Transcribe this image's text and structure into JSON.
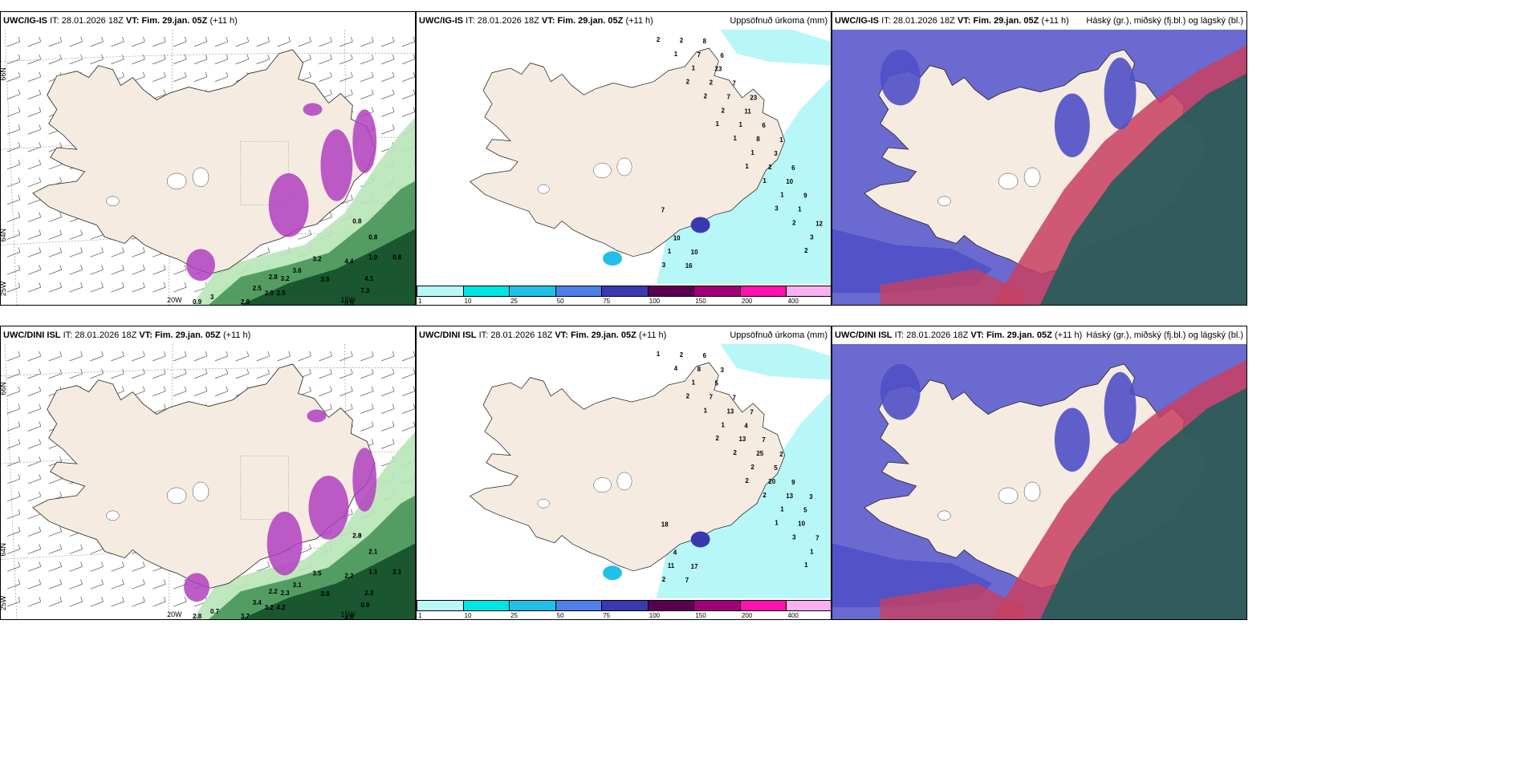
{
  "panels": [
    {
      "model": "UWC/IG-IS",
      "it_label": "IT:",
      "it": "28.01.2026 18Z",
      "vt_label": "VT:",
      "vt": "Fim. 29.jan. 05Z",
      "lead": "(+11 h)",
      "title_right": ""
    },
    {
      "model": "UWC/IG-IS",
      "it_label": "IT:",
      "it": "28.01.2026 18Z",
      "vt_label": "VT:",
      "vt": "Fim. 29.jan. 05Z",
      "lead": "(+11 h)",
      "title_right": "Uppsöfnuð úrkoma (mm)"
    },
    {
      "model": "UWC/IG-IS",
      "it_label": "IT:",
      "it": "28.01.2026 18Z",
      "vt_label": "VT:",
      "vt": "Fim. 29.jan. 05Z",
      "lead": "(+11 h)",
      "title_right": "Háský (gr.), miðský (fj.bl.) og lágský (bl.)"
    },
    {
      "model": "UWC/DINI ISL",
      "it_label": "IT:",
      "it": "28.01.2026 18Z",
      "vt_label": "VT:",
      "vt": "Fim. 29.jan. 05Z",
      "lead": "(+11 h)",
      "title_right": ""
    },
    {
      "model": "UWC/DINI ISL",
      "it_label": "IT:",
      "it": "28.01.2026 18Z",
      "vt_label": "VT:",
      "vt": "Fim. 29.jan. 05Z",
      "lead": "(+11 h)",
      "title_right": "Uppsöfnuð úrkoma (mm)"
    },
    {
      "model": "UWC/DINI ISL",
      "it_label": "IT:",
      "it": "28.01.2026 18Z",
      "vt_label": "VT:",
      "vt": "Fim. 29.jan. 05Z",
      "lead": "(+11 h)",
      "title_right": "Háský (gr.), miðský (fj.bl.) og lágský (bl.)"
    }
  ],
  "grid_labels": {
    "lat66": "66N",
    "lat64": "64N",
    "lon25": "25W",
    "lon20": "20W",
    "lon15": "15W"
  },
  "colorbar": {
    "ticks": [
      "1",
      "10",
      "25",
      "50",
      "75",
      "100",
      "150",
      "200",
      "400"
    ],
    "colors": [
      "#b8f7f7",
      "#00e6e6",
      "#22c0e8",
      "#4f7fe8",
      "#3a3ab0",
      "#5a0050",
      "#a0007a",
      "#ff10b0",
      "#f8b0f0"
    ]
  },
  "precip_labels_top": [
    "2",
    "2",
    "1",
    "1",
    "3",
    "2",
    "1",
    "2",
    "1",
    "1",
    "2",
    "3",
    "1",
    "2",
    "1",
    "1",
    "3",
    "2",
    "2",
    "1",
    "2",
    "1",
    "1",
    "7",
    "7",
    "8",
    "10",
    "12",
    "16",
    "23",
    "11",
    "3",
    "9",
    "10",
    "8",
    "7",
    "6",
    "6",
    "7",
    "10",
    "6",
    "23",
    "1"
  ],
  "precip_labels_bottom": [
    "1",
    "2",
    "2",
    "2",
    "1",
    "1",
    "4",
    "1",
    "2",
    "2",
    "3",
    "2",
    "1",
    "1",
    "2",
    "1",
    "1",
    "2",
    "7",
    "13",
    "20",
    "10",
    "11",
    "8",
    "13",
    "25",
    "13",
    "7",
    "7",
    "5",
    "4",
    "5",
    "5",
    "4",
    "6",
    "7",
    "7",
    "9",
    "18",
    "17",
    "3",
    "7",
    "2",
    "3"
  ],
  "wind_labels_top": [
    "0.8",
    "0.8",
    "1.0",
    "0.8",
    "4.4",
    "4.1",
    "3.2",
    "3.6",
    "3.9",
    "2.8",
    "3.2",
    "2.5",
    "2.9",
    "2.5",
    "2.8",
    "0.5",
    "7.3",
    "0.9",
    "3"
  ],
  "wind_labels_bottom": [
    "2.0",
    "2.1",
    "1.1",
    "2.1",
    "2.2",
    "2.3",
    "3.5",
    "3.1",
    "3.8",
    "2.2",
    "2.3",
    "3.4",
    "3.2",
    "4.2",
    "3.7",
    "4.6",
    "0.9",
    "2.8",
    "0.7",
    "2.3"
  ],
  "colors": {
    "land": "#f5ebe0",
    "precip_light": "#b8f7f7",
    "green_shade": "#1f6b3a",
    "purple_shade": "#b040c0",
    "high_cloud": "#1f5e5a",
    "mid_cloud": "#c84060",
    "low_cloud": "#5050c8"
  }
}
